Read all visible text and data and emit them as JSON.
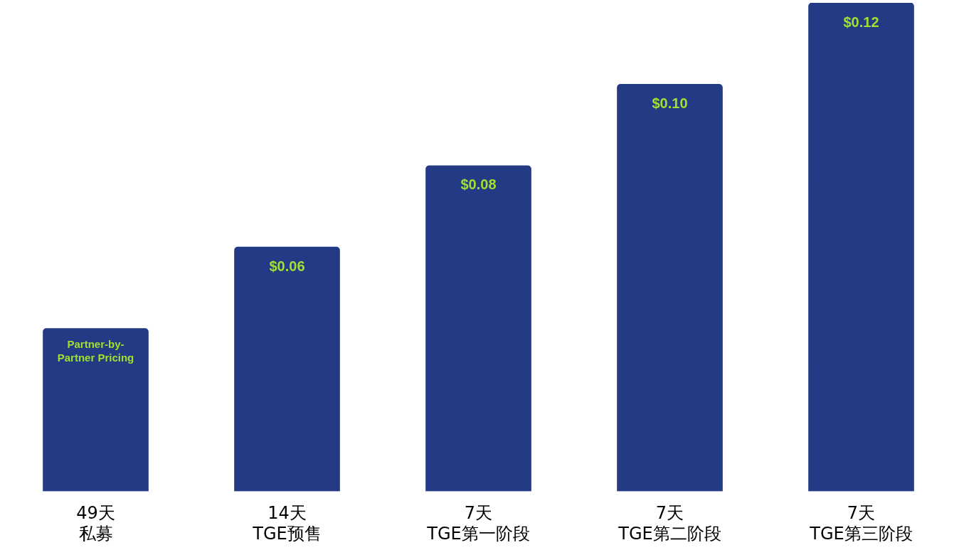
{
  "chart_data": {
    "type": "bar",
    "categories": [
      "49天私募",
      "14天TGE预售",
      "7天TGE第一阶段",
      "7天TGE第二阶段",
      "7天TGE第三阶段"
    ],
    "values": [
      0.04,
      0.06,
      0.08,
      0.1,
      0.12
    ],
    "value_labels": [
      null,
      "$0.06",
      "$0.08",
      "$0.10",
      "$0.12"
    ],
    "annotations": [
      {
        "text": "Partner-by-Partner Pricing",
        "x": "49天私募",
        "y": 0.04
      }
    ],
    "color": "#233a85"
  }
}
